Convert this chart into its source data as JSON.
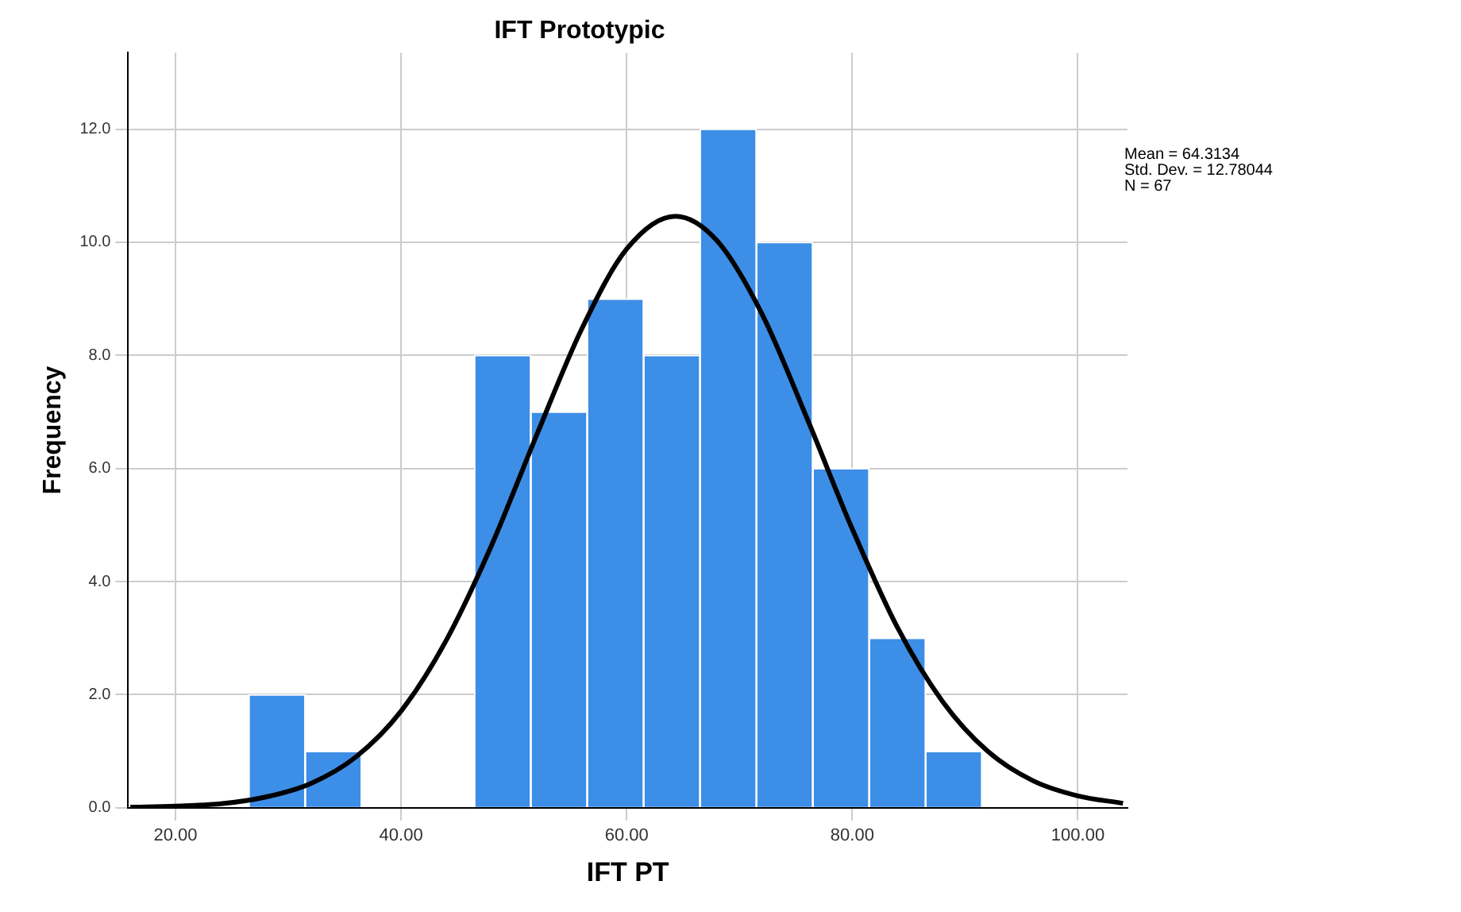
{
  "chart_data": {
    "type": "histogram",
    "title": "IFT Prototypic",
    "xlabel": "IFT PT",
    "ylabel": "Frequency",
    "bins": [
      26.5,
      31.5,
      36.5,
      41.5,
      46.5,
      51.5,
      56.5,
      61.5,
      66.5,
      71.5,
      76.5,
      81.5,
      86.5,
      91.5
    ],
    "values": [
      2,
      1,
      0,
      0,
      8,
      7,
      9,
      8,
      12,
      10,
      6,
      3,
      1
    ],
    "color": "#3d8ee6",
    "series": [
      {
        "type": "line",
        "color": "#000000",
        "x": [
          16,
          20,
          24,
          28,
          32,
          36,
          40,
          44,
          48,
          52,
          56,
          60,
          64.31,
          68,
          72,
          76,
          80,
          84,
          88,
          92,
          96,
          100,
          104
        ],
        "values": [
          0.01,
          0.03,
          0.07,
          0.19,
          0.43,
          0.9,
          1.71,
          2.96,
          4.63,
          6.58,
          8.46,
          9.88,
          10.46,
          10.03,
          8.73,
          6.88,
          4.93,
          3.19,
          1.88,
          1.0,
          0.48,
          0.21,
          0.08
        ]
      }
    ],
    "xlim": [
      15.8,
      104.4
    ],
    "xticks": [
      {
        "value": 20,
        "label": "20.00"
      },
      {
        "value": 40,
        "label": "40.00"
      },
      {
        "value": 60,
        "label": "60.00"
      },
      {
        "value": 80,
        "label": "80.00"
      },
      {
        "value": 100,
        "label": "100.00"
      }
    ],
    "ylim": [
      0,
      13.35
    ],
    "yticks": [
      {
        "value": 0,
        "label": "0.0"
      },
      {
        "value": 2,
        "label": "2.0"
      },
      {
        "value": 4,
        "label": "4.0"
      },
      {
        "value": 6,
        "label": "6.0"
      },
      {
        "value": 8,
        "label": "8.0"
      },
      {
        "value": 10,
        "label": "10.0"
      },
      {
        "value": 12,
        "label": "12.0"
      }
    ],
    "grid": true,
    "legend": false,
    "marker": "none",
    "line_style": "solid",
    "annotations": [
      "Mean = 64.3134",
      "Std. Dev. = 12.78044",
      "N = 67"
    ]
  }
}
